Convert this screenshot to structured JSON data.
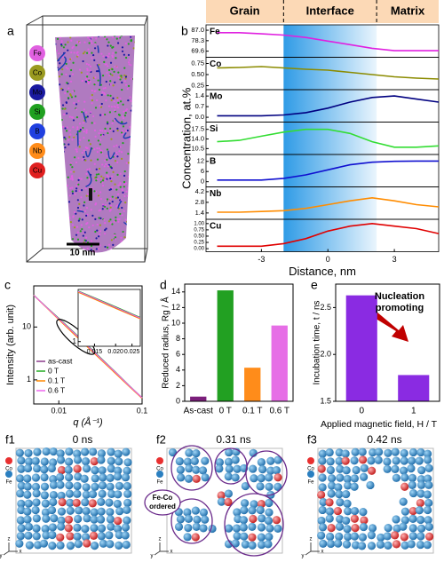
{
  "apt": {
    "panel": "a",
    "elements": [
      "Fe",
      "Co",
      "Mo",
      "Si",
      "B",
      "Nb",
      "Cu"
    ],
    "colors": [
      "#e060e0",
      "#9a9a20",
      "#1a1aa0",
      "#20a020",
      "#2040e0",
      "#ff8c1a",
      "#e02020"
    ],
    "scale_bar": "10 nm"
  },
  "chart_data": [
    {
      "panel": "b",
      "type": "line",
      "header": [
        "Grain",
        "Interface",
        "Matrix"
      ],
      "highlight_x": [
        -2,
        2.2
      ],
      "xlabel": "Distance, nm",
      "ylabel": "Concentration, at.%",
      "x": [
        -5,
        -4,
        -3,
        -2,
        -1,
        0,
        1,
        2,
        3,
        4,
        5
      ],
      "xlim": [
        -5.5,
        5
      ],
      "xticks": [
        -3,
        0,
        3
      ],
      "series": [
        {
          "name": "Fe",
          "color": "#e020e0",
          "values": [
            85,
            85,
            84,
            83,
            81,
            78,
            75,
            72,
            70,
            70,
            70
          ],
          "ylim": [
            66,
            90
          ],
          "yticks": [
            69.6,
            78.3,
            {
              "value": 87,
              "label": "87.0"
            }
          ]
        },
        {
          "name": "Co",
          "color": "#8b8b00",
          "values": [
            0.65,
            0.66,
            0.68,
            0.65,
            0.62,
            0.6,
            0.55,
            0.5,
            0.45,
            0.42,
            0.4
          ],
          "ylim": [
            0.2,
            0.85
          ],
          "yticks": [
            0.25,
            {
              "value": 0.5,
              "label": "0.50"
            },
            0.75
          ]
        },
        {
          "name": "Mo",
          "color": "#000080",
          "values": [
            0.1,
            0.1,
            0.1,
            0.15,
            0.3,
            0.6,
            1.0,
            1.3,
            1.4,
            1.2,
            1.0
          ],
          "ylim": [
            -0.2,
            1.7
          ],
          "yticks": [
            {
              "value": 0,
              "label": "0.0"
            },
            0.7,
            1.4
          ]
        },
        {
          "name": "Si",
          "color": "#33dd33",
          "values": [
            13,
            13.5,
            15,
            16.5,
            17.5,
            17.5,
            16,
            13,
            11,
            11,
            11.5
          ],
          "ylim": [
            9,
            19.5
          ],
          "yticks": [
            10.5,
            {
              "value": 14,
              "label": "14.0"
            },
            17.5
          ]
        },
        {
          "name": "B",
          "color": "#1010d0",
          "values": [
            1,
            1,
            1,
            2,
            4,
            7,
            10,
            11.5,
            12,
            12.2,
            12.2
          ],
          "ylim": [
            -2,
            15
          ],
          "yticks": [
            0,
            6,
            12
          ]
        },
        {
          "name": "Nb",
          "color": "#ff8c00",
          "values": [
            1.5,
            1.5,
            1.6,
            1.7,
            2.0,
            2.5,
            3.0,
            3.4,
            3.0,
            2.5,
            2.2
          ],
          "ylim": [
            0.8,
            4.6
          ],
          "yticks": [
            1.4,
            2.8,
            4.2
          ]
        },
        {
          "name": "Cu",
          "color": "#e00000",
          "values": [
            0.1,
            0.1,
            0.1,
            0.2,
            0.4,
            0.7,
            0.9,
            1.0,
            0.9,
            0.8,
            0.6
          ],
          "ylim": [
            -0.05,
            1.1
          ],
          "yticks": [
            {
              "value": 0,
              "label": "0.00"
            },
            0.25,
            {
              "value": 0.5,
              "label": "0.50"
            },
            0.75,
            {
              "value": 1,
              "label": "1.00"
            }
          ]
        }
      ]
    },
    {
      "panel": "c",
      "type": "line",
      "log_x": true,
      "log_y": true,
      "xlabel": "q (Å⁻¹)",
      "ylabel": "Intensity (arb. unit)",
      "x": [
        0.005,
        0.007,
        0.01,
        0.015,
        0.02,
        0.03,
        0.05,
        0.07,
        0.1
      ],
      "xlim": [
        0.005,
        0.1
      ],
      "ylim": [
        0.35,
        60
      ],
      "xticks": [
        0.01,
        0.1
      ],
      "yticks": [
        1,
        10
      ],
      "legend": "lower left",
      "series": [
        {
          "name": "as-cast",
          "color": "#8b3a8b",
          "values": [
            40,
            24.1,
            14.1,
            7.7,
            5.0,
            2.72,
            1.27,
            0.76,
            0.45
          ]
        },
        {
          "name": "0 T",
          "color": "#22aa22",
          "values": [
            40,
            24.4,
            14.6,
            8.1,
            5.25,
            2.85,
            1.32,
            0.78,
            0.46
          ]
        },
        {
          "name": "0.1 T",
          "color": "#ff8800",
          "values": [
            40,
            23.9,
            13.8,
            7.5,
            4.85,
            2.65,
            1.24,
            0.75,
            0.45
          ]
        },
        {
          "name": "0.6 T",
          "color": "#ee66ee",
          "values": [
            40,
            24.2,
            14.3,
            7.9,
            5.1,
            2.78,
            1.3,
            0.77,
            0.46
          ]
        }
      ],
      "inset": {
        "xlim": [
          0.012,
          0.028
        ],
        "ylim": [
          0.8,
          12
        ],
        "xticks": [
          0.015,
          {
            "value": 0.02,
            "label": "0.020"
          },
          0.025
        ],
        "yticks": [
          1
        ]
      }
    },
    {
      "panel": "d",
      "type": "bar",
      "ylabel": "Reduced radius, Rg / Å",
      "categories": [
        "As-cast",
        "0 T",
        "0.1 T",
        "0.6 T"
      ],
      "values": [
        0.6,
        14.2,
        4.3,
        9.7
      ],
      "colors": [
        "#7b1f7b",
        "#22a022",
        "#ff8c1a",
        "#e66ee6"
      ],
      "ylim": [
        0,
        15
      ],
      "yticks": [
        0,
        2,
        4,
        6,
        8,
        10,
        12,
        14
      ]
    },
    {
      "panel": "e",
      "type": "bar",
      "ylabel": "Incubation time, t / ns",
      "xlabel": "Applied magnetic field, H / T",
      "categories": [
        "0",
        "1"
      ],
      "values": [
        2.63,
        1.78
      ],
      "color": "#8a2be2",
      "ylim": [
        1.5,
        2.75
      ],
      "yticks": [
        1.5,
        {
          "value": 2,
          "label": "2.0"
        },
        2.5
      ],
      "annotation": [
        "Nucleation",
        "promoting"
      ]
    }
  ],
  "simulation": {
    "legend": [
      "Co",
      "Fe"
    ],
    "colors": [
      "#e83030",
      "#2a7fc0"
    ],
    "triad": [
      "z",
      "y",
      "x"
    ],
    "frames": [
      {
        "panel": "f1",
        "time": "0 ns"
      },
      {
        "panel": "f2",
        "time": "0.31 ns"
      },
      {
        "panel": "f3",
        "time": "0.42 ns"
      }
    ],
    "annotation": [
      "Fe-Co",
      "ordered"
    ]
  }
}
